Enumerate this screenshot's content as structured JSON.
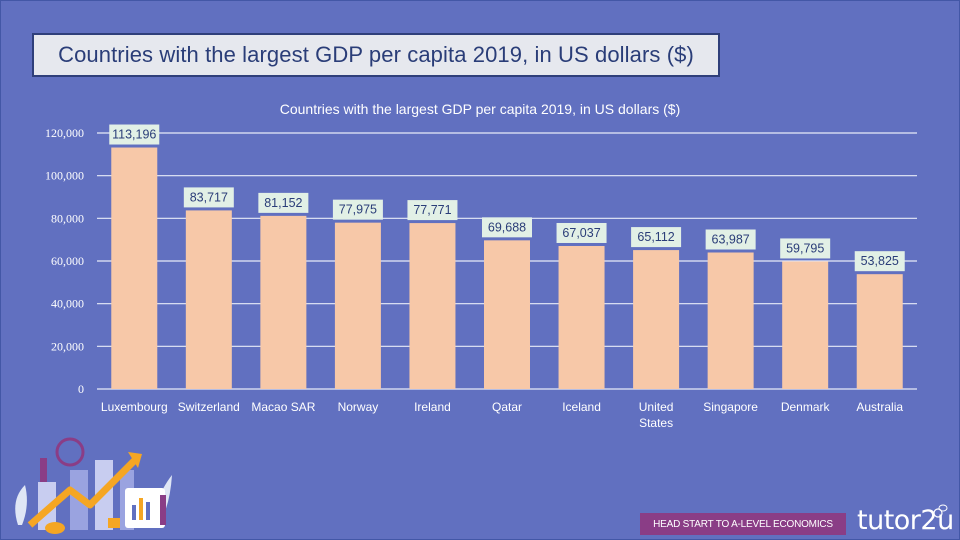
{
  "slide": {
    "title": "Countries with the largest GDP per capita 2019, in US dollars ($)",
    "banner": "HEAD START TO A-LEVEL ECONOMICS",
    "brand": "tutor2u",
    "colors": {
      "background": "#6170c0",
      "bar": "#f7c8a8",
      "label_bg": "#e2f0e6",
      "title_text": "#2a3d78",
      "banner_bg": "#8a3d86"
    }
  },
  "chart_data": {
    "type": "bar",
    "title": "Countries with the largest GDP per capita 2019, in US dollars ($)",
    "xlabel": "",
    "ylabel": "",
    "ylim": [
      0,
      120000
    ],
    "yticks": [
      0,
      20000,
      40000,
      60000,
      80000,
      100000,
      120000
    ],
    "ytick_labels": [
      "0",
      "20,000",
      "40,000",
      "60,000",
      "80,000",
      "100,000",
      "120,000"
    ],
    "grid": true,
    "legend": "none",
    "categories": [
      "Luxembourg",
      "Switzerland",
      "Macao SAR",
      "Norway",
      "Ireland",
      "Qatar",
      "Iceland",
      "United States",
      "Singapore",
      "Denmark",
      "Australia"
    ],
    "category_lines": [
      [
        "Luxembourg"
      ],
      [
        "Switzerland"
      ],
      [
        "Macao SAR"
      ],
      [
        "Norway"
      ],
      [
        "Ireland"
      ],
      [
        "Qatar"
      ],
      [
        "Iceland"
      ],
      [
        "United",
        "States"
      ],
      [
        "Singapore"
      ],
      [
        "Denmark"
      ],
      [
        "Australia"
      ]
    ],
    "values": [
      113196,
      83717,
      81152,
      77975,
      77771,
      69688,
      67037,
      65112,
      63987,
      59795,
      53825
    ],
    "data_labels": [
      "113,196",
      "83,717",
      "81,152",
      "77,975",
      "77,771",
      "69,688",
      "67,037",
      "65,112",
      "63,987",
      "59,795",
      "53,825"
    ]
  }
}
